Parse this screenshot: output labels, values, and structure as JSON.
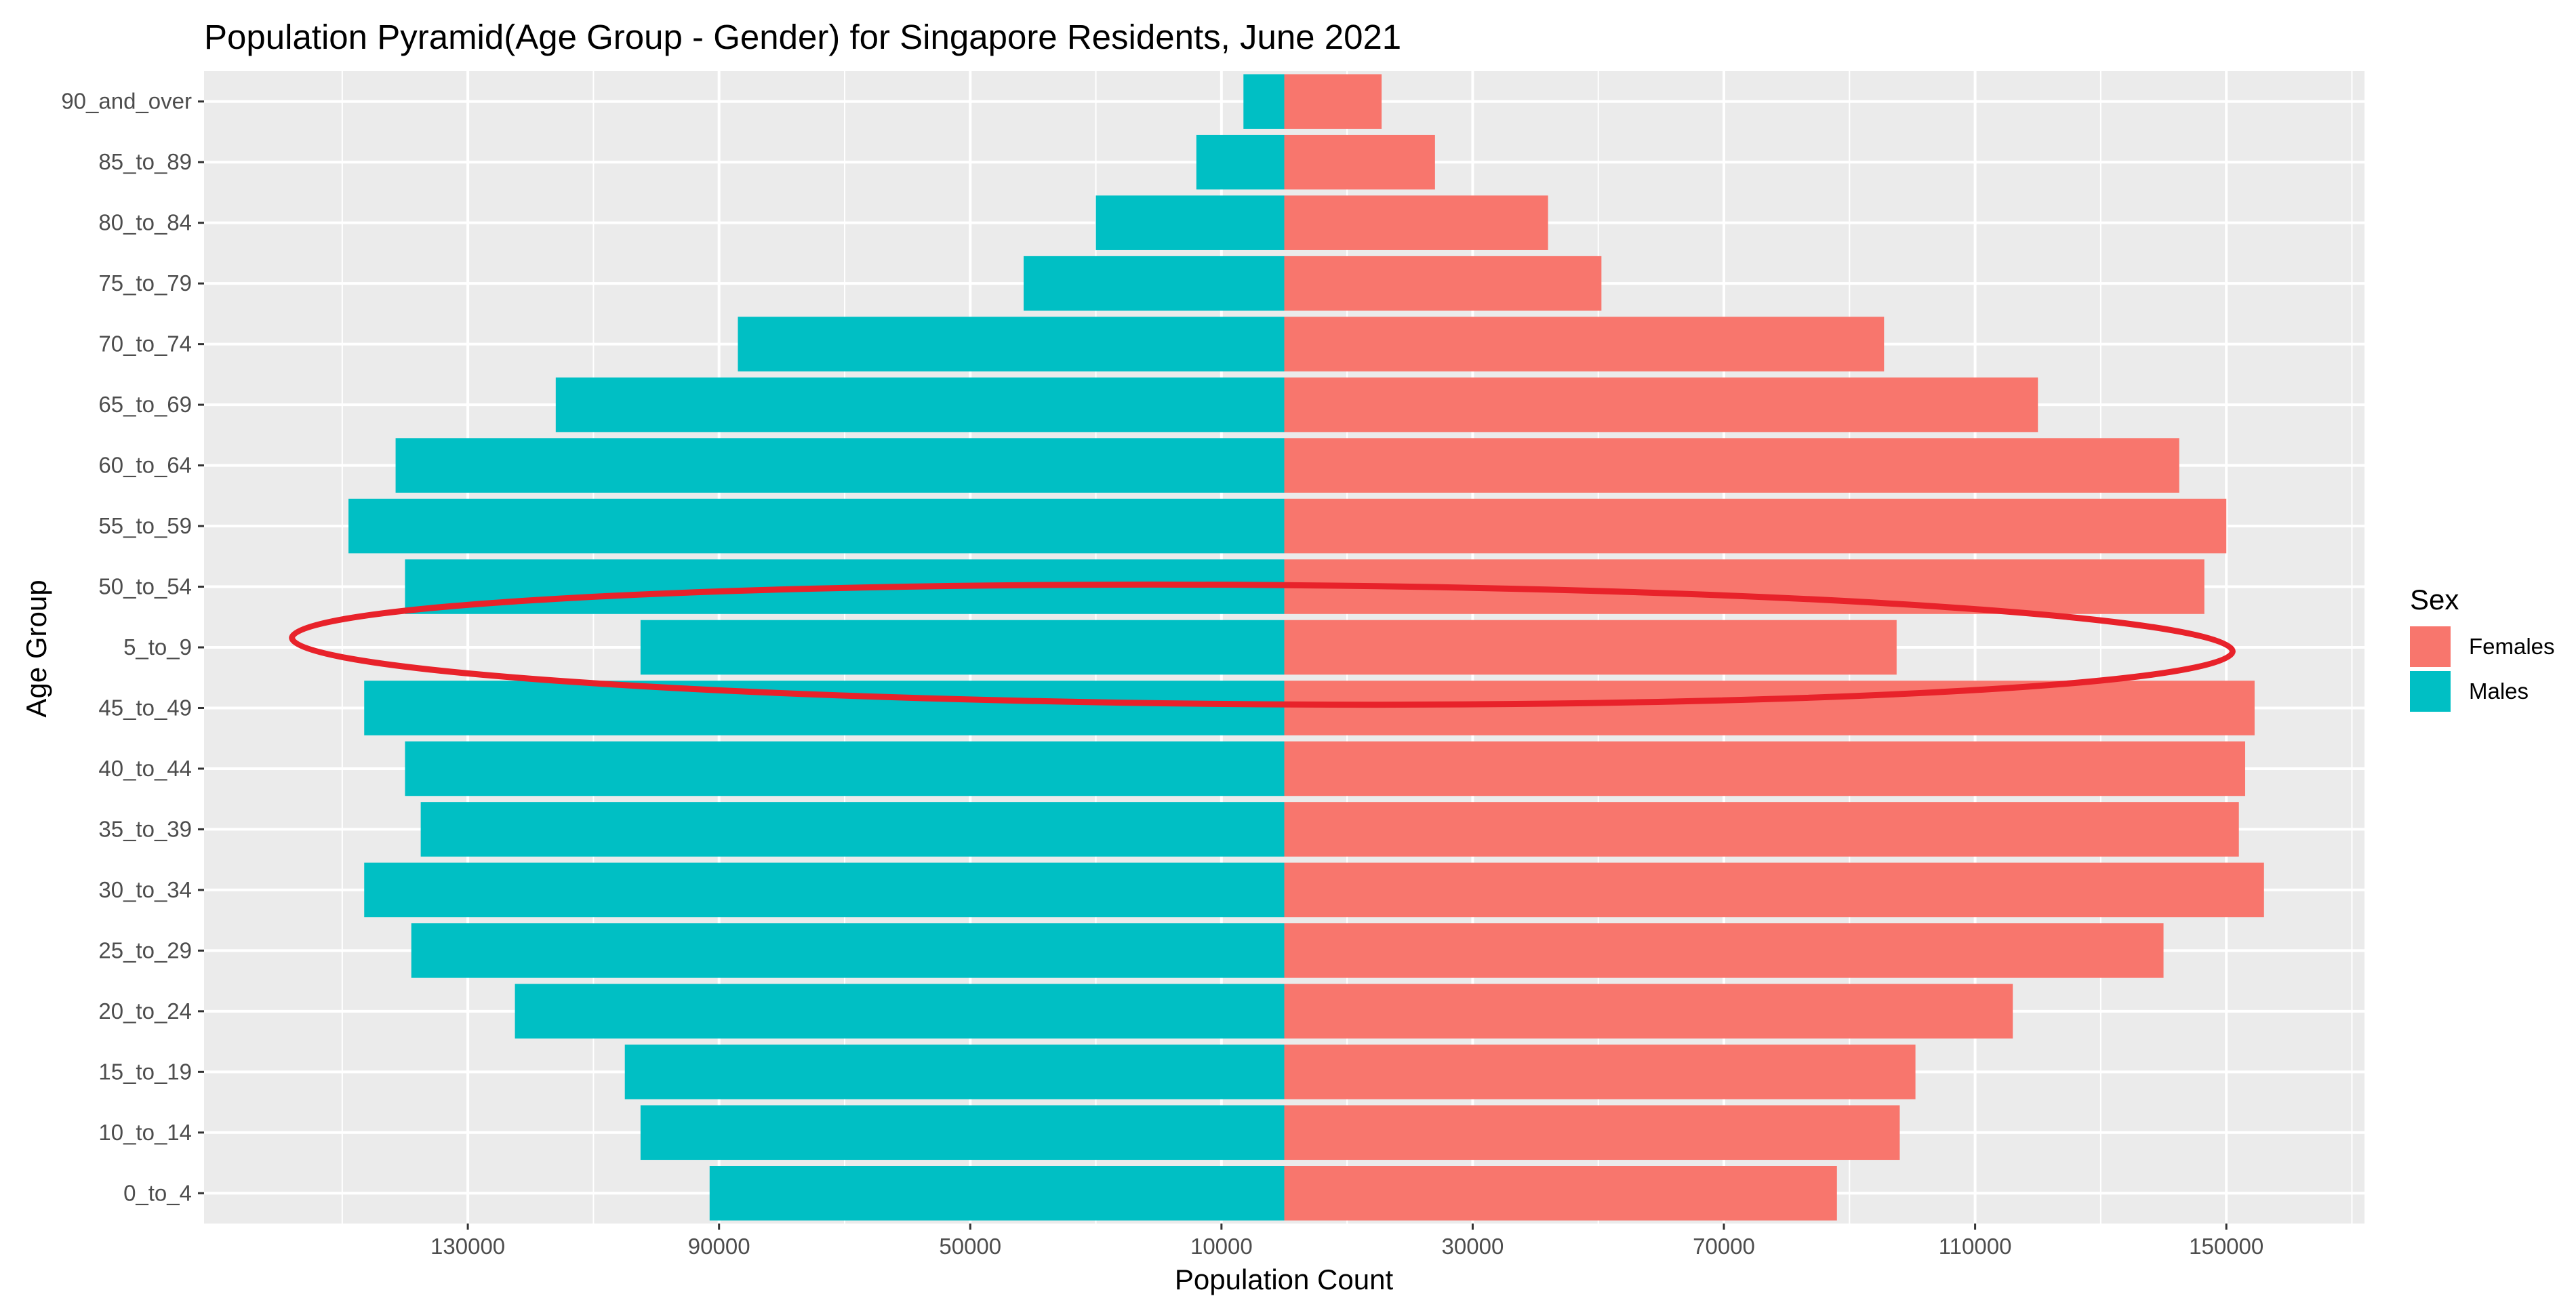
{
  "chart_data": {
    "type": "bar",
    "orientation": "horizontal",
    "title": "Population Pyramid(Age Group - Gender) for Singapore Residents, June 2021",
    "xlabel": "Population Count",
    "ylabel": "Age Group",
    "xlim": [
      -172000,
      172000
    ],
    "x_ticks": [
      {
        "value": -130000,
        "label": "130000"
      },
      {
        "value": -90000,
        "label": "90000"
      },
      {
        "value": -50000,
        "label": "50000"
      },
      {
        "value": -10000,
        "label": "10000"
      },
      {
        "value": 30000,
        "label": "30000"
      },
      {
        "value": 70000,
        "label": "70000"
      },
      {
        "value": 110000,
        "label": "110000"
      },
      {
        "value": 150000,
        "label": "150000"
      }
    ],
    "x_minor_ticks": [
      -150000,
      -110000,
      -70000,
      -30000,
      10000,
      50000,
      90000,
      130000,
      170000
    ],
    "categories": [
      "0_to_4",
      "10_to_14",
      "15_to_19",
      "20_to_24",
      "25_to_29",
      "30_to_34",
      "35_to_39",
      "40_to_44",
      "45_to_49",
      "5_to_9",
      "50_to_54",
      "55_to_59",
      "60_to_64",
      "65_to_69",
      "70_to_74",
      "75_to_79",
      "80_to_84",
      "85_to_89",
      "90_and_over"
    ],
    "series": [
      {
        "name": "Females",
        "color": "#F8766D",
        "values": [
          88000,
          98000,
          100500,
          116000,
          140000,
          156000,
          152000,
          153000,
          154500,
          97500,
          146500,
          150000,
          142500,
          120000,
          95500,
          50500,
          42000,
          24000,
          15500
        ]
      },
      {
        "name": "Males",
        "color": "#00BFC4",
        "values": [
          91500,
          102500,
          105000,
          122500,
          139000,
          146500,
          137500,
          140000,
          146500,
          102500,
          140000,
          149000,
          141500,
          116000,
          87000,
          41500,
          30000,
          14000,
          6500
        ]
      }
    ],
    "grid": true,
    "legend": {
      "title": "Sex",
      "position": "right"
    },
    "annotation": {
      "shape": "ellipse",
      "color": "#E8222A",
      "highlights": "5_to_9"
    }
  }
}
